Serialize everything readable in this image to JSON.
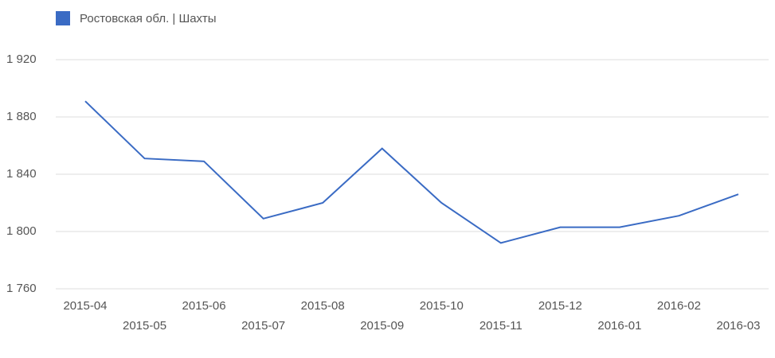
{
  "chart_data": {
    "type": "line",
    "x": [
      "2015-04",
      "2015-05",
      "2015-06",
      "2015-07",
      "2015-08",
      "2015-09",
      "2015-10",
      "2015-11",
      "2015-12",
      "2016-01",
      "2016-02",
      "2016-03"
    ],
    "series": [
      {
        "name": "Ростовская обл. | Шахты",
        "color": "#3a6bc4",
        "values": [
          1891,
          1851,
          1849,
          1809,
          1820,
          1858,
          1820,
          1792,
          1803,
          1803,
          1811,
          1826
        ]
      }
    ],
    "ylim": [
      1760,
      1920
    ],
    "yticks": [
      {
        "value": 1760,
        "label": "1 760"
      },
      {
        "value": 1800,
        "label": "1 800"
      },
      {
        "value": 1840,
        "label": "1 840"
      },
      {
        "value": 1880,
        "label": "1 880"
      },
      {
        "value": 1920,
        "label": "1 920"
      }
    ],
    "grid": true,
    "legend": "top-left"
  }
}
